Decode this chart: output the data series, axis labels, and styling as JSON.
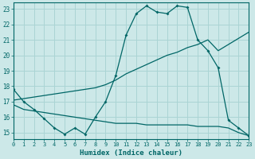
{
  "xlabel": "Humidex (Indice chaleur)",
  "bg_color": "#cce8e8",
  "grid_color": "#aad4d4",
  "line_color": "#006666",
  "xlim": [
    0,
    23
  ],
  "ylim": [
    14.6,
    23.4
  ],
  "yticks": [
    15,
    16,
    17,
    18,
    19,
    20,
    21,
    22,
    23
  ],
  "xticks": [
    0,
    1,
    2,
    3,
    4,
    5,
    6,
    7,
    8,
    9,
    10,
    11,
    12,
    13,
    14,
    15,
    16,
    17,
    18,
    19,
    20,
    21,
    22,
    23
  ],
  "line1_x": [
    0,
    1,
    2,
    3,
    4,
    5,
    6,
    7,
    8,
    9,
    10,
    11,
    12,
    13,
    14,
    15,
    16,
    17,
    18,
    19,
    20,
    21,
    22,
    23
  ],
  "line1_y": [
    17.8,
    17.0,
    16.5,
    15.9,
    15.3,
    14.9,
    15.3,
    14.9,
    16.0,
    17.0,
    18.7,
    21.3,
    22.7,
    23.2,
    22.8,
    22.7,
    23.2,
    23.1,
    21.0,
    20.3,
    19.2,
    15.8,
    15.3,
    14.8
  ],
  "line2_x": [
    0,
    1,
    2,
    3,
    4,
    5,
    6,
    7,
    8,
    9,
    10,
    11,
    12,
    13,
    14,
    15,
    16,
    17,
    18,
    19,
    20,
    22,
    23
  ],
  "line2_y": [
    17.1,
    17.2,
    17.3,
    17.4,
    17.5,
    17.6,
    17.7,
    17.8,
    17.9,
    18.1,
    18.4,
    18.8,
    19.1,
    19.4,
    19.7,
    20.0,
    20.2,
    20.5,
    20.7,
    21.0,
    20.3,
    21.1,
    21.5
  ],
  "line3_x": [
    0,
    1,
    2,
    3,
    4,
    5,
    6,
    7,
    8,
    9,
    10,
    11,
    12,
    13,
    14,
    15,
    16,
    17,
    18,
    19,
    20,
    21,
    22,
    23
  ],
  "line3_y": [
    16.8,
    16.5,
    16.4,
    16.3,
    16.2,
    16.1,
    16.0,
    15.9,
    15.8,
    15.7,
    15.6,
    15.6,
    15.6,
    15.5,
    15.5,
    15.5,
    15.5,
    15.5,
    15.4,
    15.4,
    15.4,
    15.3,
    15.0,
    14.8
  ]
}
